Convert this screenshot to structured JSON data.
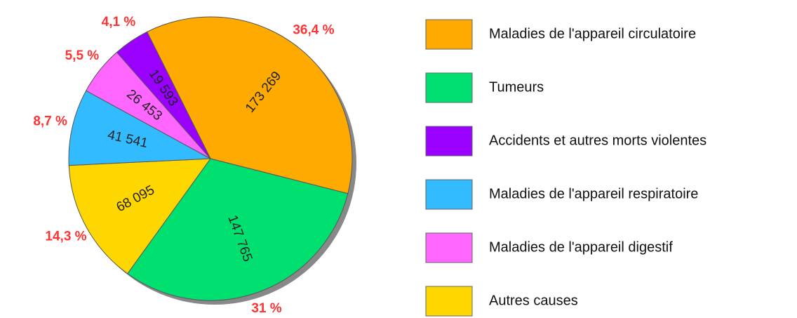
{
  "chart_data": {
    "type": "pie",
    "legend": [
      {
        "name": "Maladies de l'appareil circulatoire",
        "color": "#ffaa00"
      },
      {
        "name": "Tumeurs",
        "color": "#00e070"
      },
      {
        "name": "Accidents et autres morts violentes",
        "color": "#9900ff"
      },
      {
        "name": "Maladies de l'appareil respiratoire",
        "color": "#33bbff"
      },
      {
        "name": "Maladies de l'appareil digestif",
        "color": "#ff66ff"
      },
      {
        "name": "Autres causes",
        "color": "#ffd700"
      }
    ],
    "slices": [
      {
        "value": 173269,
        "value_label": "173 269",
        "percent": 36.4,
        "percent_label": "36,4 %",
        "color": "#ffaa00"
      },
      {
        "value": 147765,
        "value_label": "147 765",
        "percent": 31,
        "percent_label": "31 %",
        "color": "#00e070"
      },
      {
        "value": 68095,
        "value_label": "68 095",
        "percent": 14.3,
        "percent_label": "14,3 %",
        "color": "#ffd700"
      },
      {
        "value": 41541,
        "value_label": "41 541",
        "percent": 8.7,
        "percent_label": "8,7 %",
        "color": "#33bbff"
      },
      {
        "value": 26453,
        "value_label": "26 453",
        "percent": 5.5,
        "percent_label": "5,5 %",
        "color": "#ff66ff"
      },
      {
        "value": 19593,
        "value_label": "19 593",
        "percent": 4.1,
        "percent_label": "4,1 %",
        "color": "#9900ff"
      }
    ]
  }
}
